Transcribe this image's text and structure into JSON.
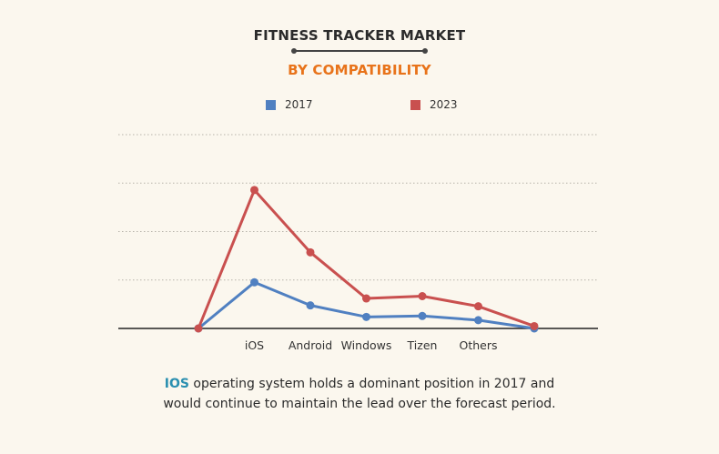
{
  "colors": {
    "background": "#fbf7ee",
    "subtitle": "#e8731a",
    "series_2017": "#5080c1",
    "series_2023": "#c9504f",
    "highlight": "#2a8fb0"
  },
  "chart_data": {
    "type": "line",
    "title": "FITNESS TRACKER MARKET",
    "subtitle": "BY COMPATIBILITY",
    "categories": [
      "",
      "iOS",
      "Android",
      "Windows",
      "Tizen",
      "Others",
      ""
    ],
    "series": [
      {
        "name": "2017",
        "values": [
          0,
          1.0,
          0.5,
          0.25,
          0.27,
          0.18,
          0
        ]
      },
      {
        "name": "2023",
        "values": [
          0,
          3.0,
          1.65,
          0.65,
          0.7,
          0.48,
          0.05
        ]
      }
    ],
    "ylim": [
      0,
      4.2
    ],
    "grid": true,
    "legend": "top-center",
    "xlabel": "",
    "ylabel": ""
  },
  "caption": {
    "highlight": "IOS",
    "line1_rest": " operating system holds a dominant position in 2017 and",
    "line2": "would continue to maintain the lead over the forecast period."
  }
}
